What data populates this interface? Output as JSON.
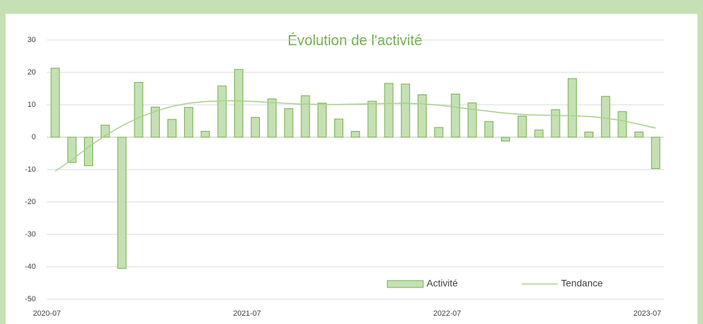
{
  "chart_data": {
    "type": "bar",
    "title": "Évolution de l'activité",
    "categories": [
      "2020-07",
      null,
      null,
      null,
      null,
      null,
      null,
      null,
      null,
      null,
      null,
      null,
      "2021-07",
      null,
      null,
      null,
      null,
      null,
      null,
      null,
      null,
      null,
      null,
      null,
      "2022-07",
      null,
      null,
      null,
      null,
      null,
      null,
      null,
      null,
      null,
      null,
      null,
      "2023-07"
    ],
    "series": [
      {
        "name": "Activité",
        "type": "bar",
        "color": "#c5e0b4",
        "edge": "#70ad47",
        "values": [
          21.3,
          -7.8,
          -8.8,
          3.7,
          -40.5,
          16.9,
          9.3,
          5.5,
          9.2,
          1.8,
          15.8,
          20.9,
          6.1,
          11.8,
          8.8,
          12.8,
          10.5,
          5.6,
          1.8,
          11.1,
          16.6,
          16.4,
          13.1,
          3.0,
          13.3,
          10.6,
          4.8,
          -1.2,
          6.5,
          2.2,
          8.5,
          18.1,
          1.6,
          12.6,
          7.9,
          1.6,
          -9.7
        ]
      },
      {
        "name": "Tendance",
        "type": "line",
        "color": "#a9d18e",
        "values": [
          -10.5,
          -7,
          -3,
          0.5,
          3.5,
          6,
          8,
          9.5,
          10.5,
          11,
          11.2,
          11.2,
          11,
          10.7,
          10.4,
          10.2,
          10.1,
          10.1,
          10.2,
          10.3,
          10.4,
          10.5,
          10.3,
          9.9,
          9.3,
          8.6,
          8,
          7.4,
          7,
          6.8,
          6.7,
          6.6,
          6.4,
          5.9,
          5.1,
          4,
          2.8
        ]
      }
    ],
    "ylim": [
      -50,
      30
    ],
    "yticks": [
      -50,
      -40,
      -30,
      -20,
      -10,
      0,
      10,
      20,
      30
    ],
    "grid": true
  }
}
